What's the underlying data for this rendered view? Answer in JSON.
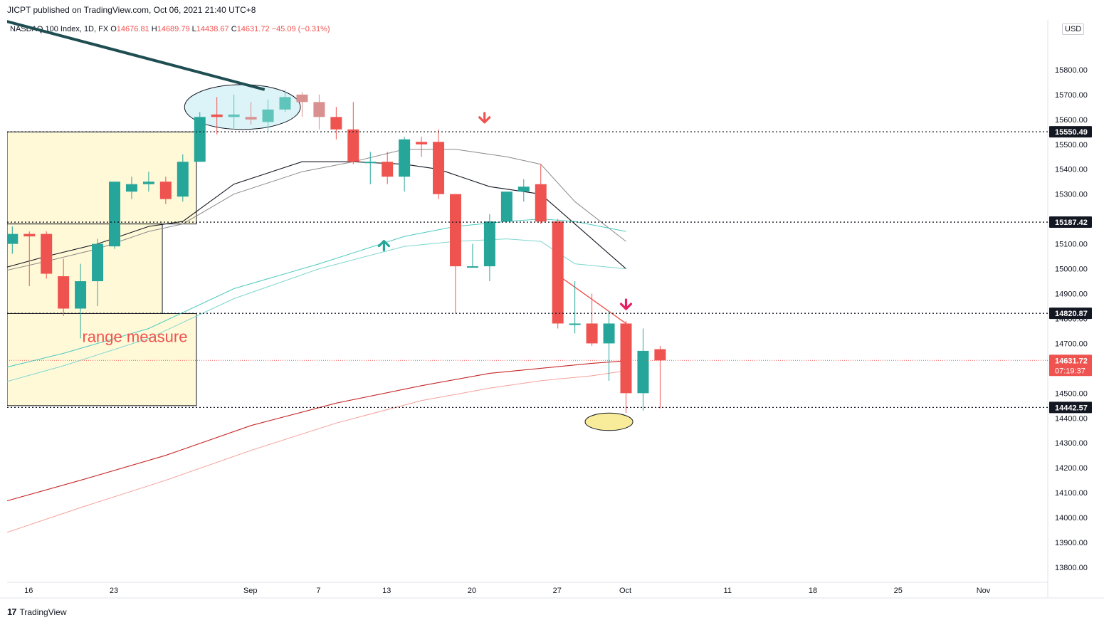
{
  "header": {
    "published": "JICPT published on TradingView.com, Oct 06, 2021 21:40 UTC+8"
  },
  "legend": {
    "symbol": "NASDAQ 100 Index, 1D, FX",
    "o_label": "O",
    "o": "14676.81",
    "h_label": "H",
    "h": "14689.79",
    "l_label": "L",
    "l": "14438.67",
    "c_label": "C",
    "c": "14631.72",
    "change": "−45.09 (−0.31%)"
  },
  "currency": "USD",
  "footer": {
    "brand": "TradingView"
  },
  "colors": {
    "up": "#26a69a",
    "down": "#ef5350",
    "up_faded": "#5fc5bb",
    "down_faded": "#d99090",
    "zone_fill": "#fff9d8",
    "ema_red": "#c62828",
    "ema_light_red": "#f4a09a",
    "teal_ma": "#4cc9c0",
    "black_ma": "#131722",
    "grey_ma": "#8a8a8a"
  },
  "chart_data": {
    "type": "candlestick",
    "y_axis": {
      "range": [
        13740,
        16000
      ],
      "ticks": [
        13800,
        13900,
        14000,
        14100,
        14200,
        14300,
        14400,
        14500,
        14700,
        14800,
        14900,
        15000,
        15100,
        15300,
        15400,
        15500,
        15600,
        15700,
        15800
      ],
      "tick_labels": [
        "13800.00",
        "13900.00",
        "14000.00",
        "14100.00",
        "14200.00",
        "14300.00",
        "14400.00",
        "14500.00",
        "14700.00",
        "14800.00",
        "14900.00",
        "15000.00",
        "15100.00",
        "15300.00",
        "15400.00",
        "15500.00",
        "15600.00",
        "15700.00",
        "15800.00"
      ]
    },
    "x_axis": {
      "labels": [
        "16",
        "23",
        "Sep",
        "7",
        "13",
        "20",
        "27",
        "Oct",
        "11",
        "18",
        "25",
        "Nov"
      ],
      "label_bar_index": [
        0,
        5,
        13,
        17,
        21,
        26,
        31,
        35,
        41,
        46,
        51,
        56
      ]
    },
    "candles": [
      {
        "o": 15100,
        "h": 15170,
        "l": 15060,
        "c": 15140,
        "faded": false
      },
      {
        "o": 15140,
        "h": 15150,
        "l": 14930,
        "c": 15130,
        "faded": false
      },
      {
        "o": 15140,
        "h": 15150,
        "l": 14960,
        "c": 14980,
        "faded": false
      },
      {
        "o": 14970,
        "h": 15040,
        "l": 14810,
        "c": 14840,
        "faded": false
      },
      {
        "o": 14840,
        "h": 15020,
        "l": 14720,
        "c": 14950,
        "faded": false
      },
      {
        "o": 14950,
        "h": 15120,
        "l": 14850,
        "c": 15100,
        "faded": false
      },
      {
        "o": 15090,
        "h": 15350,
        "l": 15080,
        "c": 15350,
        "faded": false
      },
      {
        "o": 15310,
        "h": 15370,
        "l": 15280,
        "c": 15340,
        "faded": false
      },
      {
        "o": 15340,
        "h": 15390,
        "l": 15310,
        "c": 15350,
        "faded": false
      },
      {
        "o": 15350,
        "h": 15370,
        "l": 15260,
        "c": 15280,
        "faded": false
      },
      {
        "o": 15290,
        "h": 15460,
        "l": 15270,
        "c": 15430,
        "faded": false
      },
      {
        "o": 15430,
        "h": 15630,
        "l": 15430,
        "c": 15610,
        "faded": false
      },
      {
        "o": 15620,
        "h": 15690,
        "l": 15540,
        "c": 15610,
        "faded": false
      },
      {
        "o": 15610,
        "h": 15700,
        "l": 15560,
        "c": 15620,
        "faded": true
      },
      {
        "o": 15610,
        "h": 15670,
        "l": 15580,
        "c": 15600,
        "faded": true
      },
      {
        "o": 15590,
        "h": 15680,
        "l": 15550,
        "c": 15640,
        "faded": true
      },
      {
        "o": 15640,
        "h": 15720,
        "l": 15630,
        "c": 15690,
        "faded": true
      },
      {
        "o": 15700,
        "h": 15710,
        "l": 15610,
        "c": 15670,
        "faded": true
      },
      {
        "o": 15670,
        "h": 15700,
        "l": 15560,
        "c": 15610,
        "faded": true
      },
      {
        "o": 15610,
        "h": 15650,
        "l": 15520,
        "c": 15560,
        "faded": false
      },
      {
        "o": 15560,
        "h": 15670,
        "l": 15420,
        "c": 15430,
        "faded": false
      },
      {
        "o": 15430,
        "h": 15470,
        "l": 15340,
        "c": 15430,
        "faded": false
      },
      {
        "o": 15430,
        "h": 15470,
        "l": 15340,
        "c": 15370,
        "faded": false
      },
      {
        "o": 15370,
        "h": 15530,
        "l": 15310,
        "c": 15520,
        "faded": false
      },
      {
        "o": 15510,
        "h": 15530,
        "l": 15450,
        "c": 15500,
        "faded": false
      },
      {
        "o": 15510,
        "h": 15560,
        "l": 15280,
        "c": 15300,
        "faded": false
      },
      {
        "o": 15300,
        "h": 15300,
        "l": 14820,
        "c": 15010,
        "faded": false
      },
      {
        "o": 15010,
        "h": 15100,
        "l": 15010,
        "c": 15010,
        "faded": false
      },
      {
        "o": 15010,
        "h": 15220,
        "l": 14950,
        "c": 15190,
        "faded": false
      },
      {
        "o": 15190,
        "h": 15300,
        "l": 15190,
        "c": 15310,
        "faded": false
      },
      {
        "o": 15310,
        "h": 15360,
        "l": 15270,
        "c": 15330,
        "faded": false
      },
      {
        "o": 15340,
        "h": 15420,
        "l": 15180,
        "c": 15190,
        "faded": false
      },
      {
        "o": 15190,
        "h": 15200,
        "l": 14760,
        "c": 14780,
        "faded": false
      },
      {
        "o": 14780,
        "h": 14950,
        "l": 14740,
        "c": 14780,
        "faded": false
      },
      {
        "o": 14780,
        "h": 14900,
        "l": 14690,
        "c": 14700,
        "faded": false
      },
      {
        "o": 14700,
        "h": 14830,
        "l": 14550,
        "c": 14780,
        "faded": false
      },
      {
        "o": 14780,
        "h": 14790,
        "l": 14420,
        "c": 14500,
        "faded": false
      },
      {
        "o": 14500,
        "h": 14760,
        "l": 14430,
        "c": 14670,
        "faded": false
      },
      {
        "o": 14676.81,
        "h": 14689.79,
        "l": 14438.67,
        "c": 14631.72,
        "faded": false
      }
    ],
    "horizontal_levels": [
      {
        "value": 15550.49,
        "label": "15550.49"
      },
      {
        "value": 15187.42,
        "label": "15187.42"
      },
      {
        "value": 14820.87,
        "label": "14820.87"
      },
      {
        "value": 14442.57,
        "label": "14442.57"
      }
    ],
    "last_price": {
      "value": 14631.72,
      "label": "14631.72",
      "countdown": "07:19:37"
    },
    "zones": [
      {
        "bar_start": -1.2,
        "bar_end": 10.8,
        "top": 15550,
        "bottom": 15180
      },
      {
        "bar_start": -1.2,
        "bar_end": 8.8,
        "top": 15180,
        "bottom": 14820
      },
      {
        "bar_start": -1.2,
        "bar_end": 10.8,
        "top": 14820,
        "bottom": 14450
      }
    ],
    "annotation_text": "range measure",
    "moving_averages": [
      {
        "role": "black",
        "points": [
          [
            -1.2,
            14990
          ],
          [
            2,
            15050
          ],
          [
            5,
            15100
          ],
          [
            8,
            15170
          ],
          [
            10,
            15190
          ],
          [
            13,
            15340
          ],
          [
            17,
            15430
          ],
          [
            20,
            15430
          ],
          [
            23,
            15420
          ],
          [
            25,
            15400
          ],
          [
            28,
            15330
          ],
          [
            31,
            15300
          ],
          [
            33,
            15180
          ],
          [
            36,
            15000
          ]
        ]
      },
      {
        "role": "grey",
        "points": [
          [
            -1.2,
            14980
          ],
          [
            2,
            15030
          ],
          [
            5,
            15080
          ],
          [
            8,
            15150
          ],
          [
            10,
            15180
          ],
          [
            13,
            15300
          ],
          [
            17,
            15390
          ],
          [
            20,
            15430
          ],
          [
            23,
            15480
          ],
          [
            26,
            15480
          ],
          [
            29,
            15450
          ],
          [
            31,
            15420
          ],
          [
            33,
            15270
          ],
          [
            36,
            15110
          ]
        ]
      },
      {
        "role": "teal",
        "points": [
          [
            -1.2,
            14590
          ],
          [
            3,
            14660
          ],
          [
            8,
            14760
          ],
          [
            13,
            14920
          ],
          [
            18,
            15020
          ],
          [
            23,
            15130
          ],
          [
            26,
            15170
          ],
          [
            29,
            15190
          ],
          [
            31,
            15200
          ],
          [
            33,
            15190
          ],
          [
            36,
            15150
          ]
        ]
      },
      {
        "role": "teal_light",
        "points": [
          [
            -1.2,
            14530
          ],
          [
            3,
            14610
          ],
          [
            8,
            14720
          ],
          [
            13,
            14880
          ],
          [
            18,
            15000
          ],
          [
            23,
            15090
          ],
          [
            26,
            15110
          ],
          [
            29,
            15120
          ],
          [
            31,
            15110
          ],
          [
            33,
            15020
          ],
          [
            36,
            15000
          ]
        ]
      },
      {
        "role": "red",
        "points": [
          [
            -1.2,
            14050
          ],
          [
            4,
            14150
          ],
          [
            9,
            14250
          ],
          [
            14,
            14370
          ],
          [
            19,
            14460
          ],
          [
            24,
            14530
          ],
          [
            28,
            14580
          ],
          [
            31,
            14600
          ],
          [
            34,
            14620
          ],
          [
            36,
            14630
          ]
        ]
      },
      {
        "role": "light_red",
        "points": [
          [
            -1.2,
            13920
          ],
          [
            4,
            14040
          ],
          [
            9,
            14150
          ],
          [
            14,
            14270
          ],
          [
            19,
            14380
          ],
          [
            24,
            14470
          ],
          [
            28,
            14520
          ],
          [
            31,
            14550
          ],
          [
            34,
            14570
          ],
          [
            36,
            14590
          ]
        ]
      }
    ],
    "trend_lines": [
      {
        "role": "dark_teal_thick",
        "points": [
          [
            -1.2,
            16010
          ],
          [
            14.8,
            15720
          ]
        ]
      },
      {
        "role": "red_thin",
        "points": [
          [
            32.3,
            14960
          ],
          [
            36,
            14780
          ]
        ]
      }
    ],
    "arrows": [
      {
        "bar": 27.7,
        "value": 15600,
        "direction": "down",
        "role": "down"
      },
      {
        "bar": 21.8,
        "value": 15100,
        "direction": "up",
        "role": "up"
      },
      {
        "bar": 36,
        "value": 14850,
        "direction": "down",
        "role": "pink"
      }
    ],
    "ellipses": [
      {
        "bar_center": 13.5,
        "value_center": 15650,
        "bar_radius": 3.4,
        "value_radius": 90,
        "fill": "#dcf3f7"
      },
      {
        "bar_center": 35,
        "value_center": 14385,
        "bar_radius": 1.4,
        "value_radius": 35,
        "fill": "#f8ec9a"
      }
    ]
  }
}
